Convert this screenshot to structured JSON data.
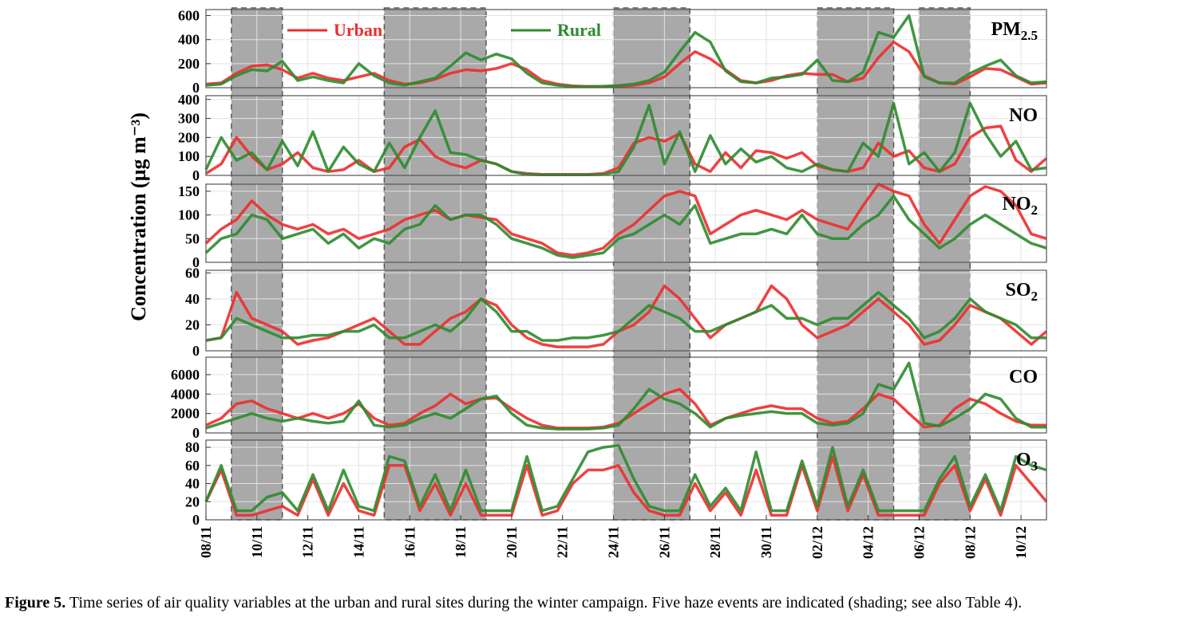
{
  "caption": {
    "figure_label": "Figure 5.",
    "text": " Time series of air quality variables at the urban and rural sites during the winter campaign. Five haze events are indicated (shading; see also Table 4)."
  },
  "colors": {
    "urban": "#ee2c2c",
    "rural": "#2e8b2e",
    "haze_fill": "#a9a9a9",
    "grid": "#e3e3e3"
  },
  "chart_data": {
    "type": "line",
    "ylabel": "Concentration (µg m⁻³)",
    "legend": {
      "placement": "top-center",
      "entries": [
        "Urban",
        "Rural"
      ]
    },
    "x_range": [
      "08/11",
      "11/12"
    ],
    "x_ticks": [
      "08/11",
      "10/11",
      "12/11",
      "14/11",
      "16/11",
      "18/11",
      "20/11",
      "22/11",
      "24/11",
      "26/11",
      "28/11",
      "30/11",
      "02/12",
      "04/12",
      "06/12",
      "08/12",
      "10/12"
    ],
    "haze_events": [
      {
        "start": "09/11",
        "end": "11/11"
      },
      {
        "start": "15/11",
        "end": "19/11"
      },
      {
        "start": "24/11",
        "end": "27/11"
      },
      {
        "start": "02/12",
        "end": "05/12"
      },
      {
        "start": "06/12",
        "end": "08/12"
      }
    ],
    "grid": true,
    "panels": [
      {
        "name": "PM2.5",
        "label_main": "PM",
        "label_sub": "2.5",
        "ylim": [
          0,
          650
        ],
        "yticks": [
          0,
          200,
          400,
          600
        ],
        "series": [
          {
            "name": "Urban",
            "color": "#ee2c2c",
            "values": [
              30,
              40,
              120,
              180,
              190,
              150,
              80,
              120,
              80,
              60,
              90,
              120,
              60,
              30,
              40,
              70,
              120,
              150,
              140,
              160,
              200,
              150,
              60,
              30,
              15,
              10,
              10,
              12,
              20,
              40,
              90,
              200,
              300,
              240,
              150,
              60,
              40,
              60,
              100,
              120,
              110,
              110,
              50,
              80,
              250,
              380,
              300,
              100,
              40,
              30,
              90,
              160,
              150,
              90,
              30,
              40
            ]
          },
          {
            "name": "Rural",
            "color": "#2e8b2e",
            "values": [
              20,
              30,
              100,
              150,
              140,
              220,
              60,
              90,
              60,
              40,
              200,
              100,
              40,
              20,
              50,
              80,
              180,
              290,
              230,
              280,
              240,
              120,
              40,
              20,
              10,
              10,
              12,
              18,
              30,
              60,
              130,
              300,
              460,
              380,
              140,
              50,
              40,
              80,
              90,
              110,
              230,
              60,
              50,
              130,
              460,
              420,
              600,
              90,
              40,
              40,
              120,
              180,
              230,
              100,
              40,
              50
            ]
          }
        ]
      },
      {
        "name": "NO",
        "label_main": "NO",
        "label_sub": "",
        "ylim": [
          0,
          420
        ],
        "yticks": [
          0,
          100,
          200,
          300,
          400
        ],
        "series": [
          {
            "name": "Urban",
            "color": "#ee2c2c",
            "values": [
              10,
              60,
              200,
              100,
              30,
              60,
              120,
              40,
              20,
              30,
              80,
              20,
              40,
              150,
              190,
              100,
              60,
              40,
              80,
              60,
              20,
              10,
              5,
              5,
              5,
              5,
              10,
              40,
              170,
              200,
              180,
              220,
              60,
              20,
              120,
              40,
              130,
              120,
              90,
              120,
              50,
              30,
              20,
              40,
              170,
              100,
              130,
              40,
              20,
              60,
              200,
              250,
              260,
              80,
              20,
              90
            ]
          },
          {
            "name": "Rural",
            "color": "#2e8b2e",
            "values": [
              30,
              200,
              80,
              120,
              30,
              180,
              50,
              230,
              20,
              150,
              60,
              20,
              170,
              40,
              200,
              340,
              120,
              110,
              80,
              60,
              20,
              5,
              3,
              3,
              3,
              3,
              5,
              20,
              150,
              370,
              60,
              230,
              20,
              210,
              60,
              140,
              70,
              100,
              40,
              20,
              60,
              30,
              20,
              170,
              100,
              380,
              60,
              120,
              20,
              120,
              380,
              220,
              100,
              180,
              30,
              40
            ]
          }
        ]
      },
      {
        "name": "NO2",
        "label_main": "NO",
        "label_sub": "2",
        "ylim": [
          0,
          165
        ],
        "yticks": [
          0,
          50,
          100,
          150
        ],
        "series": [
          {
            "name": "Urban",
            "color": "#ee2c2c",
            "values": [
              40,
              70,
              90,
              130,
              100,
              80,
              70,
              80,
              60,
              70,
              50,
              60,
              70,
              90,
              100,
              110,
              90,
              100,
              95,
              90,
              60,
              50,
              40,
              20,
              15,
              20,
              30,
              60,
              80,
              110,
              140,
              150,
              140,
              60,
              80,
              100,
              110,
              100,
              90,
              110,
              90,
              80,
              70,
              120,
              170,
              150,
              140,
              80,
              40,
              90,
              140,
              160,
              150,
              120,
              60,
              50
            ]
          },
          {
            "name": "Rural",
            "color": "#2e8b2e",
            "values": [
              20,
              50,
              60,
              100,
              90,
              50,
              60,
              70,
              40,
              60,
              30,
              50,
              40,
              70,
              80,
              120,
              90,
              100,
              100,
              80,
              50,
              40,
              30,
              15,
              10,
              15,
              20,
              50,
              60,
              80,
              100,
              80,
              120,
              40,
              50,
              60,
              60,
              70,
              60,
              100,
              60,
              50,
              50,
              80,
              100,
              140,
              90,
              60,
              30,
              50,
              80,
              100,
              80,
              60,
              40,
              30
            ]
          }
        ]
      },
      {
        "name": "SO2",
        "label_main": "SO",
        "label_sub": "2",
        "ylim": [
          0,
          62
        ],
        "yticks": [
          0,
          20,
          40,
          60
        ],
        "series": [
          {
            "name": "Urban",
            "color": "#ee2c2c",
            "values": [
              8,
              10,
              45,
              25,
              20,
              15,
              5,
              8,
              10,
              15,
              20,
              25,
              15,
              5,
              5,
              15,
              25,
              30,
              40,
              35,
              20,
              10,
              5,
              3,
              3,
              3,
              5,
              15,
              20,
              30,
              50,
              40,
              25,
              10,
              20,
              25,
              30,
              50,
              40,
              20,
              10,
              15,
              20,
              30,
              40,
              30,
              20,
              5,
              8,
              20,
              35,
              30,
              25,
              15,
              5,
              15
            ]
          },
          {
            "name": "Rural",
            "color": "#2e8b2e",
            "values": [
              8,
              10,
              25,
              20,
              15,
              10,
              10,
              12,
              12,
              15,
              15,
              20,
              10,
              10,
              15,
              20,
              15,
              25,
              40,
              30,
              15,
              15,
              8,
              8,
              10,
              10,
              12,
              15,
              25,
              35,
              30,
              25,
              15,
              15,
              20,
              25,
              30,
              35,
              25,
              25,
              20,
              25,
              25,
              35,
              45,
              35,
              25,
              10,
              15,
              25,
              40,
              30,
              25,
              20,
              10,
              10
            ]
          }
        ]
      },
      {
        "name": "CO",
        "label_main": "CO",
        "label_sub": "",
        "ylim": [
          0,
          7800
        ],
        "yticks": [
          0,
          2000,
          4000,
          6000
        ],
        "series": [
          {
            "name": "Urban",
            "color": "#ee2c2c",
            "values": [
              800,
              1500,
              3000,
              3300,
              2500,
              2000,
              1500,
              2000,
              1500,
              2000,
              3000,
              1500,
              800,
              1000,
              2000,
              2800,
              4000,
              3000,
              3500,
              3600,
              2500,
              1500,
              800,
              500,
              500,
              500,
              600,
              1000,
              2000,
              3000,
              4000,
              4500,
              3000,
              800,
              1500,
              2000,
              2500,
              2800,
              2500,
              2500,
              1500,
              1000,
              1200,
              2500,
              4000,
              3500,
              2000,
              600,
              800,
              2500,
              3500,
              3000,
              2000,
              1200,
              800,
              800
            ]
          },
          {
            "name": "Rural",
            "color": "#2e8b2e",
            "values": [
              500,
              1000,
              1500,
              2000,
              1500,
              1200,
              1500,
              1200,
              1000,
              1200,
              3300,
              800,
              600,
              800,
              1500,
              2000,
              1500,
              2500,
              3500,
              3800,
              2000,
              800,
              500,
              400,
              400,
              400,
              500,
              800,
              2500,
              4500,
              3500,
              3000,
              2000,
              600,
              1500,
              1800,
              2000,
              2200,
              2000,
              2000,
              1000,
              800,
              1000,
              2000,
              5000,
              4500,
              7200,
              1000,
              700,
              1500,
              2500,
              4000,
              3500,
              1500,
              600,
              600
            ]
          }
        ]
      },
      {
        "name": "O3",
        "label_main": "O",
        "label_sub": "3",
        "ylim": [
          0,
          88
        ],
        "yticks": [
          0,
          20,
          40,
          60,
          80
        ],
        "series": [
          {
            "name": "Urban",
            "color": "#ee2c2c",
            "values": [
              20,
              55,
              5,
              5,
              10,
              15,
              5,
              45,
              5,
              40,
              10,
              5,
              60,
              60,
              10,
              40,
              5,
              40,
              5,
              5,
              5,
              60,
              5,
              10,
              40,
              55,
              55,
              60,
              30,
              10,
              5,
              5,
              40,
              10,
              30,
              5,
              55,
              5,
              5,
              60,
              10,
              70,
              10,
              50,
              5,
              5,
              5,
              5,
              40,
              60,
              10,
              45,
              5,
              60,
              40,
              20
            ]
          },
          {
            "name": "Rural",
            "color": "#2e8b2e",
            "values": [
              20,
              60,
              10,
              10,
              25,
              30,
              10,
              50,
              10,
              55,
              15,
              10,
              70,
              65,
              15,
              50,
              10,
              55,
              10,
              10,
              10,
              70,
              10,
              15,
              45,
              75,
              80,
              82,
              45,
              15,
              10,
              10,
              50,
              15,
              35,
              10,
              75,
              10,
              10,
              65,
              15,
              80,
              15,
              55,
              10,
              10,
              10,
              10,
              45,
              70,
              15,
              50,
              10,
              70,
              60,
              55
            ]
          }
        ]
      }
    ]
  }
}
